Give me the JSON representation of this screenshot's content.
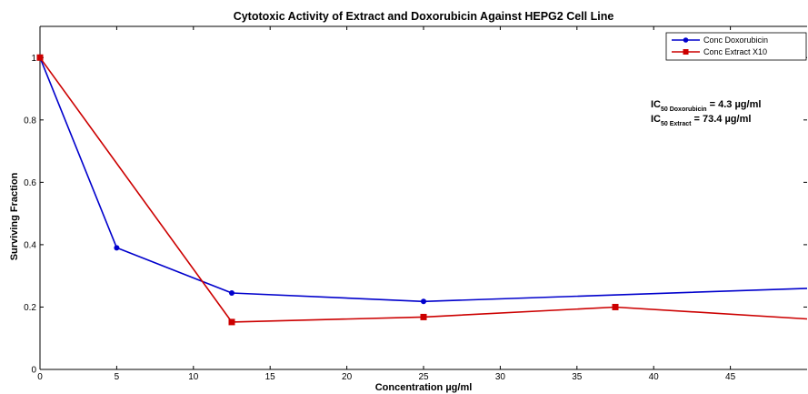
{
  "chart_data": {
    "type": "line",
    "title": "Cytotoxic Activity of Extract and Doxorubicin Against HEPG2 Cell Line",
    "xlabel": "Concentration µg/ml",
    "ylabel": "Surviving Fraction",
    "xlim": [
      0,
      50
    ],
    "ylim": [
      0,
      1.1
    ],
    "x_ticks": [
      "0",
      "5",
      "10",
      "15",
      "20",
      "25",
      "30",
      "35",
      "40",
      "45"
    ],
    "y_ticks": [
      "0",
      "0.2",
      "0.4",
      "0.6",
      "0.8",
      "1"
    ],
    "grid": false,
    "legend_position": "top-right",
    "series": [
      {
        "name": "Conc Doxorubicin",
        "color": "#0000cc",
        "marker": "circle",
        "x": [
          0,
          5,
          12.5,
          25,
          50
        ],
        "y": [
          1.0,
          0.39,
          0.245,
          0.218,
          0.26
        ]
      },
      {
        "name": "Conc Extract X10",
        "color": "#cc0000",
        "marker": "square",
        "x": [
          0,
          12.5,
          25,
          37.5,
          50
        ],
        "y": [
          1.0,
          0.152,
          0.168,
          0.2,
          0.162
        ]
      }
    ],
    "annotations": {
      "ic50_doxorubicin": {
        "main": "IC",
        "sub": "50 Doxorubicin",
        "value": " = 4.3 µg/ml"
      },
      "ic50_extract": {
        "main": "IC",
        "sub": "50 Extract",
        "value": " = 73.4 µg/ml"
      }
    }
  }
}
